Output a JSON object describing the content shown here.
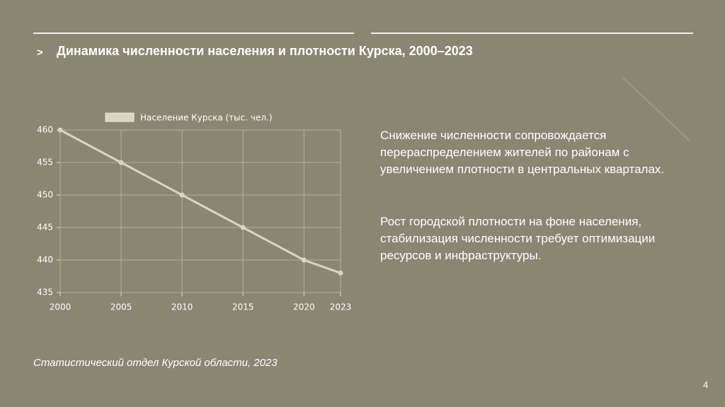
{
  "header": {
    "marker": ">",
    "title": "Динамика численности населения и плотности Курска, 2000–2023"
  },
  "chart_data": {
    "type": "line",
    "x": [
      2000,
      2005,
      2010,
      2015,
      2020,
      2023
    ],
    "series": [
      {
        "name": "Население Курска (тыс. чел.)",
        "color": "#d8d5c2",
        "values": [
          460,
          455,
          450,
          445,
          440,
          438
        ]
      }
    ],
    "xlim": [
      2000,
      2023
    ],
    "xticks": [
      2000,
      2005,
      2010,
      2015,
      2020,
      2023
    ],
    "ylim": [
      435,
      460
    ],
    "yticks": [
      435,
      440,
      445,
      450,
      455,
      460
    ],
    "grid": true,
    "legend": "top"
  },
  "paragraphs": [
    "Снижение численности сопровождается перераспределением жителей по районам с увеличением плотности в центральных кварталах.",
    "Рост городской плотности на фоне населения, стабилизация численности требует оптимизации ресурсов и инфраструктуры."
  ],
  "footer": {
    "source": "Статистический отдел Курской области, 2023",
    "page": "4"
  }
}
